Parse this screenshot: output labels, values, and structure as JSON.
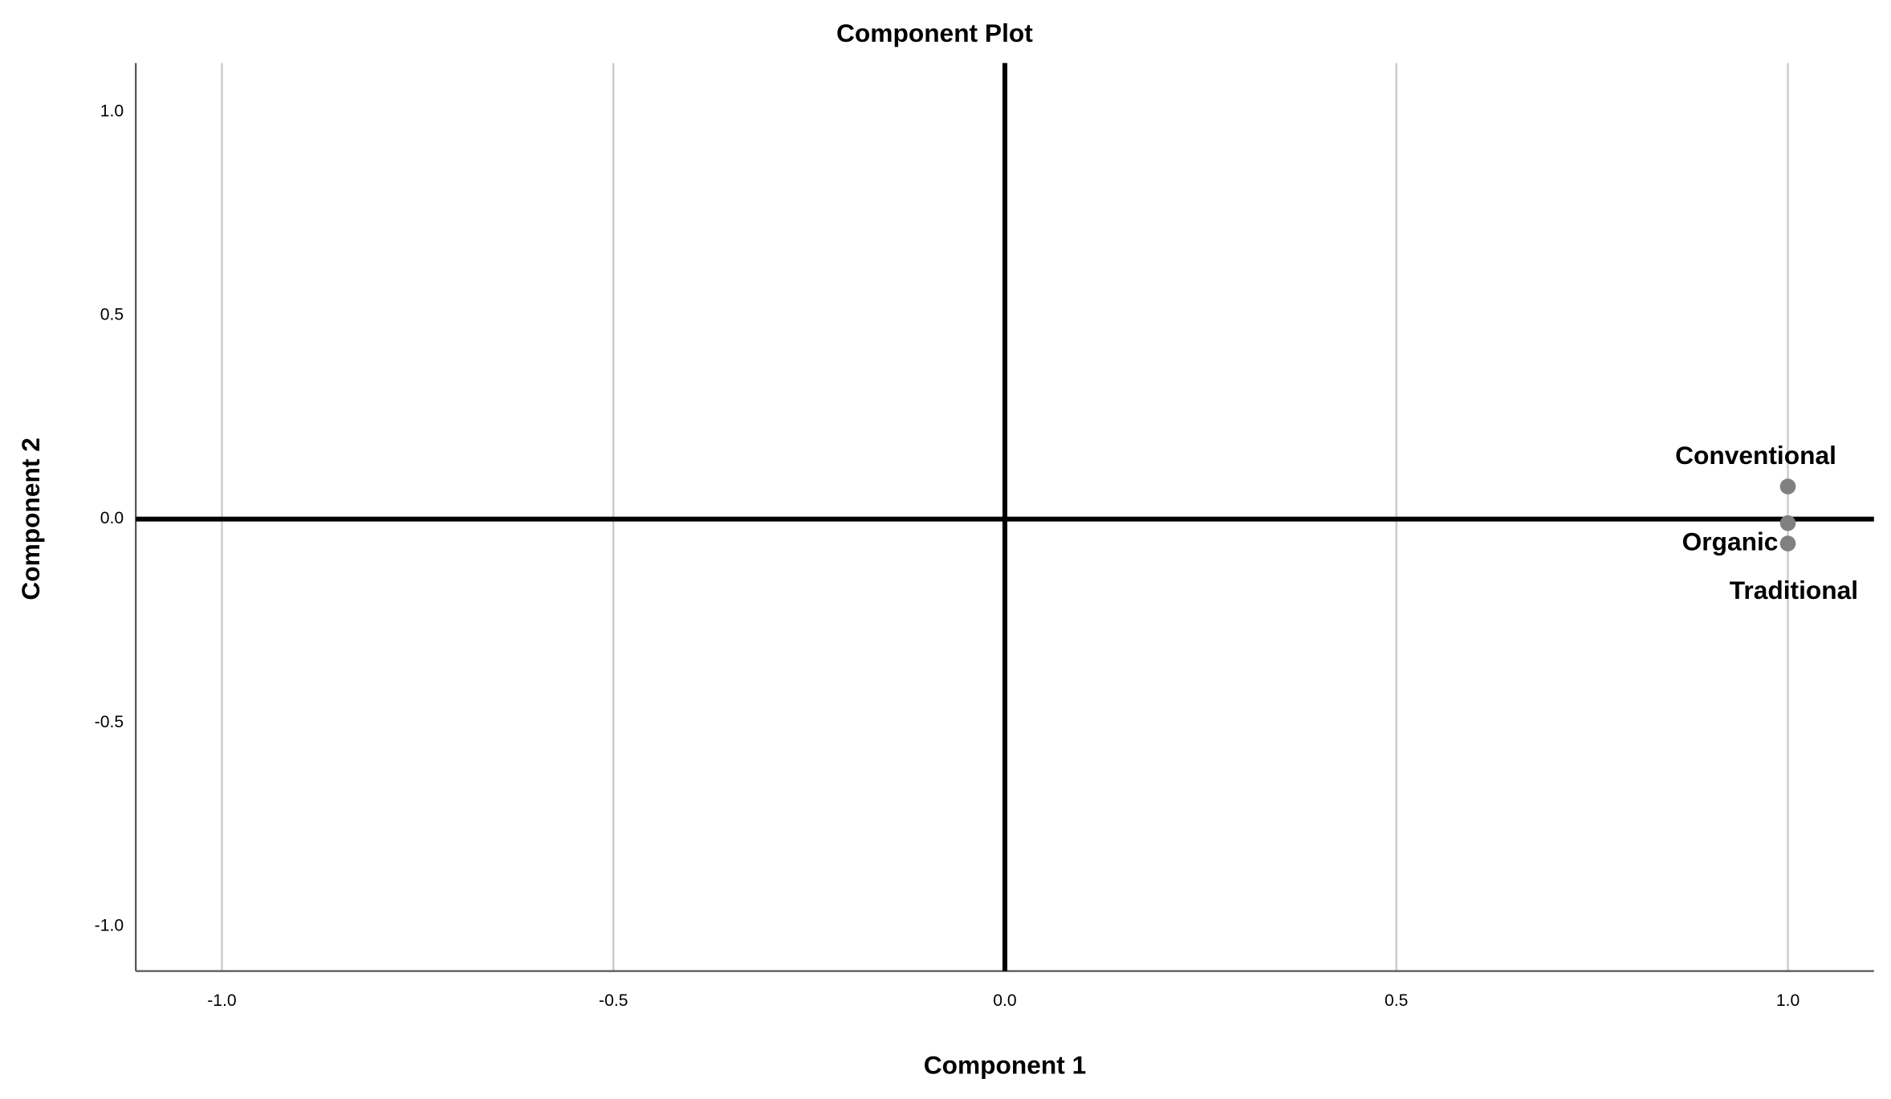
{
  "chart_data": {
    "type": "scatter",
    "title": "Component Plot",
    "x_label": "Component 1",
    "y_label": "Component 2",
    "labels": [
      "Conventional",
      "Traditional",
      "Organic"
    ],
    "x": [
      1.0,
      1.0,
      1.0
    ],
    "values": [
      0.08,
      -0.01,
      -0.06
    ],
    "color": "#808080",
    "xlim": [
      -1.11,
      1.11
    ],
    "ylim": [
      -1.11,
      1.12
    ],
    "xticks": [
      {
        "value": -1,
        "label": "-1.0"
      },
      -0.5,
      {
        "value": 0,
        "label": "0.0"
      },
      0.5,
      {
        "value": 1,
        "label": "1.0"
      }
    ],
    "yticks": [
      {
        "value": -1,
        "label": "-1.0"
      },
      -0.5,
      {
        "value": 0,
        "label": "0.0"
      },
      0.5,
      {
        "value": 1,
        "label": "1.0"
      }
    ],
    "grid": true
  }
}
